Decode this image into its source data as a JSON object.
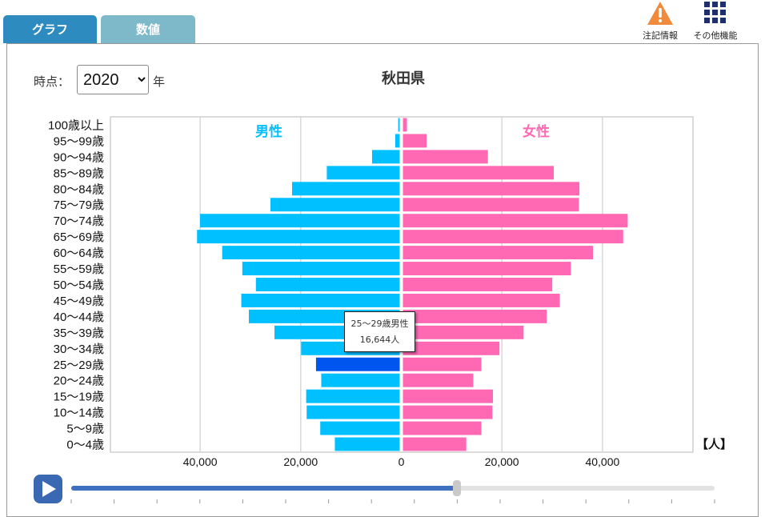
{
  "tabs": {
    "graph": "グラフ",
    "values": "数値"
  },
  "top_actions": {
    "notes": "注記情報",
    "more": "その他機能"
  },
  "controls": {
    "time_label": "時点：",
    "year": "2020",
    "year_suffix": "年",
    "year_options": [
      "2020"
    ]
  },
  "title": "秋田県",
  "colors": {
    "male": "#00c0ff",
    "female": "#ff69b4",
    "highlight": "#0055ee",
    "notes_icon": "#f08a3c",
    "grid_icon": "#1f2f6b"
  },
  "tooltip": {
    "line1": "25〜29歳男性",
    "line2": "16,644人"
  },
  "slider": {
    "progress": 0.6
  },
  "chart_data": {
    "type": "bar",
    "orientation": "horizontal-population-pyramid",
    "title": "秋田県",
    "unit": "【人】",
    "male_label": "男性",
    "female_label": "女性",
    "categories": [
      "100歳以上",
      "95〜99歳",
      "90〜94歳",
      "85〜89歳",
      "80〜84歳",
      "75〜79歳",
      "70〜74歳",
      "65〜69歳",
      "60〜64歳",
      "55〜59歳",
      "50〜54歳",
      "45〜49歳",
      "40〜44歳",
      "35〜39歳",
      "30〜34歳",
      "25〜29歳",
      "20〜24歳",
      "15〜19歳",
      "10〜14歳",
      "5〜9歳",
      "0〜4歳"
    ],
    "series": [
      {
        "name": "男性",
        "values": [
          300,
          900,
          5500,
          14500,
          21400,
          25700,
          39700,
          40300,
          35300,
          31300,
          28600,
          31500,
          30000,
          24900,
          19600,
          16644,
          15600,
          18600,
          18500,
          15800,
          12900
        ]
      },
      {
        "name": "女性",
        "values": [
          800,
          4700,
          16900,
          30000,
          35100,
          35000,
          44700,
          43800,
          37800,
          33400,
          29700,
          31200,
          28600,
          24000,
          19200,
          15600,
          14000,
          17900,
          17800,
          15600,
          12600
        ]
      }
    ],
    "highlight": {
      "series": "男性",
      "category": "25〜29歳"
    },
    "xlim": [
      -58000,
      58000
    ],
    "x_ticks": [
      -40000,
      -20000,
      0,
      20000,
      40000
    ],
    "x_tick_labels": [
      "40,000",
      "20,000",
      "0",
      "20,000",
      "40,000"
    ],
    "grid": true
  }
}
